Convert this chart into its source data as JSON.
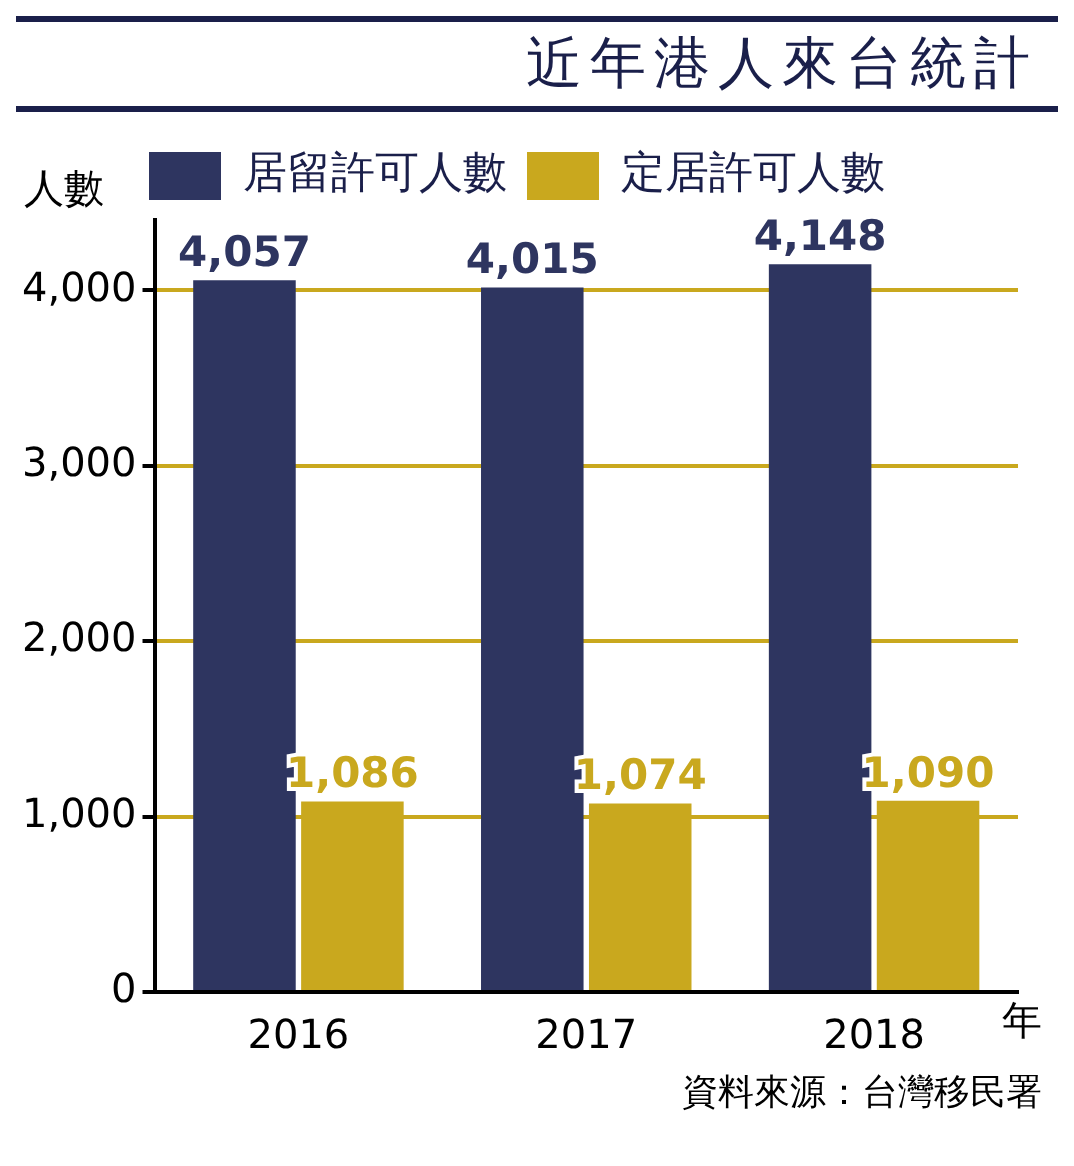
{
  "chart_data": {
    "type": "bar",
    "title": "近年港人來台統計",
    "ylabel": "人數",
    "xlabel": "年",
    "categories": [
      "2016",
      "2017",
      "2018"
    ],
    "series": [
      {
        "name": "居留許可人數",
        "color": "#2e3560",
        "values": [
          4057,
          4015,
          4148
        ],
        "value_labels": [
          "4,057",
          "4,015",
          "4,148"
        ]
      },
      {
        "name": "定居許可人數",
        "color": "#c9a81e",
        "values": [
          1086,
          1074,
          1090
        ],
        "value_labels": [
          "1,086",
          "1,074",
          "1,090"
        ]
      }
    ],
    "ylim": [
      0,
      4400
    ],
    "yticks": [
      0,
      {
        "value": 1000,
        "label": "1,000"
      },
      {
        "value": 2000,
        "label": "2,000"
      },
      {
        "value": 3000,
        "label": "3,000"
      },
      {
        "value": 4000,
        "label": "4,000"
      }
    ],
    "grid": "y",
    "legend": "top",
    "annotations": [
      "資料來源：台灣移民署"
    ]
  }
}
